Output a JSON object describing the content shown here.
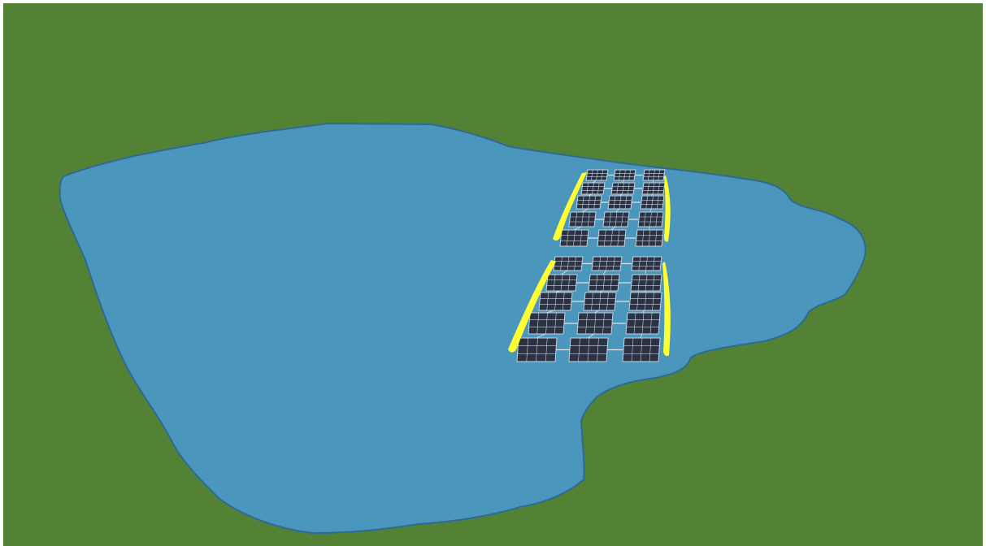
{
  "scene": {
    "colors": {
      "land": "#548235",
      "water": "#4a96bc",
      "shore": "#2e6a96",
      "panel": "#2a3244",
      "panel_grid": "#c9d3dc",
      "connector": "#d9e4ec",
      "boom": "#ffff33"
    },
    "arrays": [
      {
        "name": "upper-array",
        "rows": 5,
        "columns": 3,
        "cells_per_panel": {
          "rows": 3,
          "cols": 4
        }
      },
      {
        "name": "lower-array",
        "rows": 5,
        "columns": 3,
        "cells_per_panel": {
          "rows": 3,
          "cols": 4
        }
      }
    ]
  }
}
